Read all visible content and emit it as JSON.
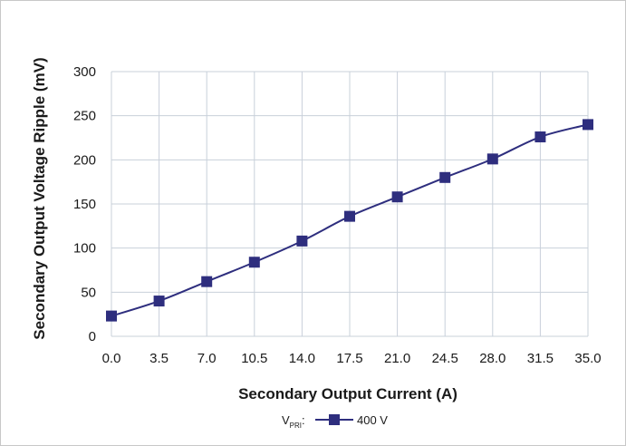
{
  "chart_data": {
    "type": "line",
    "title": "",
    "xlabel": "Secondary Output Current (A)",
    "ylabel": "Secondary Output Voltage Ripple (mV)",
    "x": [
      0.0,
      3.5,
      7.0,
      10.5,
      14.0,
      17.5,
      21.0,
      24.5,
      28.0,
      31.5,
      35.0
    ],
    "x_tick_labels": [
      "0.0",
      "3.5",
      "7.0",
      "10.5",
      "14.0",
      "17.5",
      "21.0",
      "24.5",
      "28.0",
      "31.5",
      "35.0"
    ],
    "y_ticks": [
      0,
      50,
      100,
      150,
      200,
      250,
      300
    ],
    "y_tick_labels": [
      "0",
      "50",
      "100",
      "150",
      "200",
      "250",
      "300"
    ],
    "xlim": [
      0,
      35
    ],
    "ylim": [
      0,
      300
    ],
    "grid": true,
    "legend_position": "bottom-center",
    "legend": {
      "prefix_main": "V",
      "prefix_sub": "PRI",
      "prefix_colon": ":"
    },
    "series": [
      {
        "name": "400 V",
        "color": "#2e2e7e",
        "marker": "square",
        "values": [
          23,
          40,
          62,
          84,
          108,
          136,
          158,
          180,
          201,
          226,
          240
        ]
      }
    ]
  }
}
